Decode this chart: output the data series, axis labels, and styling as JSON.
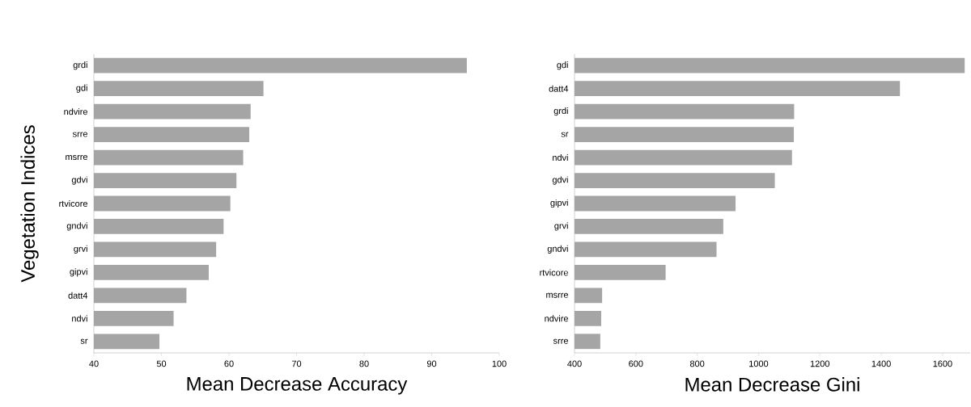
{
  "chart_data": [
    {
      "type": "bar",
      "orientation": "horizontal",
      "ylabel": "Vegetation Indices",
      "xlabel": "Mean Decrease Accuracy",
      "color": "#a5a5a5",
      "categories": [
        "grdi",
        "gdi",
        "ndvire",
        "srre",
        "msrre",
        "gdvi",
        "rtvicore",
        "gndvi",
        "grvi",
        "gipvi",
        "datt4",
        "ndvi",
        "sr"
      ],
      "values": [
        95.2,
        65.1,
        63.2,
        63.0,
        62.1,
        61.1,
        60.2,
        59.2,
        58.1,
        57.0,
        53.7,
        51.8,
        49.7
      ],
      "xlim": [
        40,
        100
      ],
      "xticks": [
        40,
        50,
        60,
        70,
        80,
        90,
        100
      ]
    },
    {
      "type": "bar",
      "orientation": "horizontal",
      "xlabel": "Mean Decrease Gini",
      "color": "#a5a5a5",
      "categories": [
        "gdi",
        "datt4",
        "grdi",
        "sr",
        "ndvi",
        "gdvi",
        "gipvi",
        "grvi",
        "gndvi",
        "rtvicore",
        "msrre",
        "ndvire",
        "srre"
      ],
      "values": [
        1672,
        1461,
        1116,
        1115,
        1109,
        1053,
        925,
        885,
        863,
        697,
        490,
        487,
        484
      ],
      "xlim": [
        400,
        1690
      ],
      "xticks": [
        400,
        600,
        800,
        1000,
        1200,
        1400,
        1600
      ]
    }
  ]
}
